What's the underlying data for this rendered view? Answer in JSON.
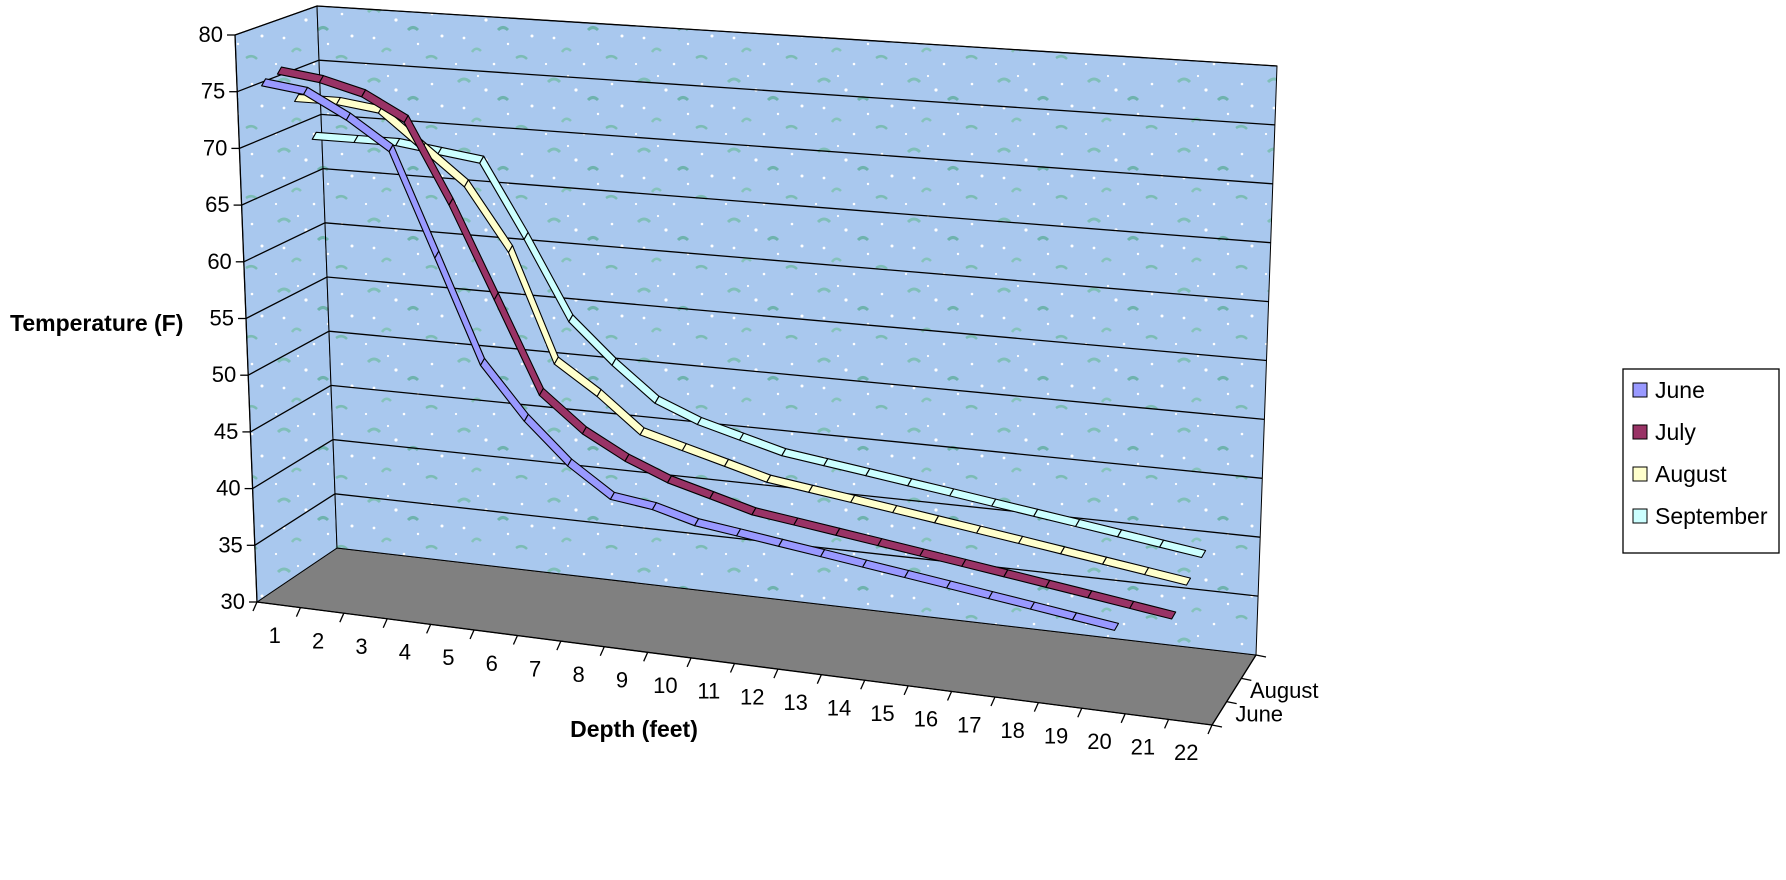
{
  "chart_data": {
    "type": "line",
    "title": "",
    "xlabel": "Depth (feet)",
    "ylabel": "Temperature (F)",
    "ylim": [
      30,
      80
    ],
    "yticks": [
      30,
      35,
      40,
      45,
      50,
      55,
      60,
      65,
      70,
      75,
      80
    ],
    "categories": [
      "1",
      "2",
      "3",
      "4",
      "5",
      "6",
      "7",
      "8",
      "9",
      "10",
      "11",
      "12",
      "13",
      "14",
      "15",
      "16",
      "17",
      "18",
      "19",
      "20",
      "21",
      "22"
    ],
    "depth_axis_labels": [
      "August",
      "June"
    ],
    "grid": true,
    "legend_position": "right",
    "series": [
      {
        "name": "June",
        "color": "#9999ff",
        "values": [
          76,
          75.5,
          73.5,
          71,
          62,
          53,
          48.5,
          45,
          42.5,
          42,
          41,
          40.5,
          40,
          39.5,
          39,
          38.5,
          38,
          37.5,
          37,
          36.5,
          36,
          null
        ]
      },
      {
        "name": "July",
        "color": "#993366",
        "values": [
          76.5,
          76,
          75,
          73,
          66,
          58,
          50,
          47,
          45,
          43.5,
          42.5,
          41.5,
          41,
          40.5,
          40,
          39.5,
          39,
          38.5,
          38,
          37.5,
          37,
          36.5
        ]
      },
      {
        "name": "August",
        "color": "#ffffcc",
        "values": [
          73.5,
          73.5,
          73,
          70,
          67,
          61.5,
          52,
          49.5,
          46.5,
          45.5,
          44.5,
          43.5,
          43,
          42.5,
          42,
          41.5,
          41,
          40.5,
          40,
          39.5,
          39,
          38.5
        ]
      },
      {
        "name": "September",
        "color": "#ccffff",
        "values": [
          69.5,
          69.5,
          69.5,
          69,
          68.5,
          62,
          55,
          51.5,
          48.5,
          47,
          46,
          45,
          44.5,
          44,
          43.5,
          43,
          42.5,
          42,
          41.5,
          41,
          40.5,
          40
        ]
      }
    ]
  }
}
